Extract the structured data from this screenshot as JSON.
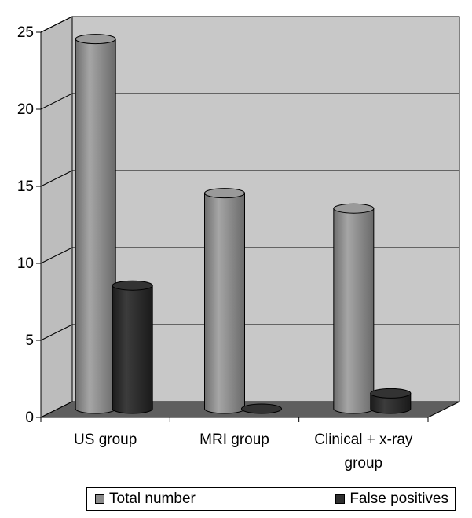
{
  "chart_data": {
    "type": "bar",
    "title": "",
    "xlabel": "",
    "ylabel": "",
    "ylim": [
      0,
      25
    ],
    "yticks": [
      "0",
      "5",
      "10",
      "15",
      "20",
      "25"
    ],
    "categories": [
      "US group",
      "MRI group",
      "Clinical + x-ray group"
    ],
    "category_lines": [
      [
        "US group"
      ],
      [
        "MRI group"
      ],
      [
        "Clinical + x-ray",
        "group"
      ]
    ],
    "grid": true,
    "legend_position": "bottom",
    "series": [
      {
        "name": "Total number",
        "values": [
          24,
          14,
          13
        ],
        "color": "#8a8a8a"
      },
      {
        "name": "False positives",
        "values": [
          8,
          0,
          1
        ],
        "color": "#2e2e2e"
      }
    ],
    "colors": {
      "wall": "#c8c8c8",
      "floor": "#5e5e5e"
    }
  }
}
